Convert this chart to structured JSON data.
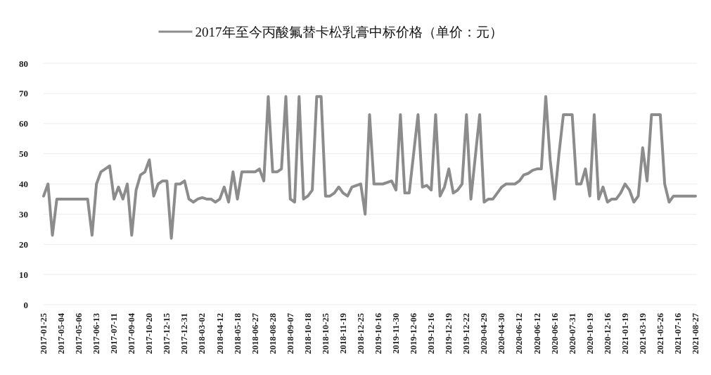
{
  "chart_data": {
    "type": "line",
    "categories": [
      "2017-01-25",
      null,
      null,
      null,
      "2017-05-04",
      null,
      null,
      null,
      "2017-05-06",
      null,
      null,
      null,
      "2017-06-13",
      null,
      null,
      null,
      "2017-07-11",
      null,
      null,
      null,
      "2017-09-04",
      null,
      null,
      null,
      "2017-10-20",
      null,
      null,
      null,
      "2017-12-15",
      null,
      null,
      null,
      "2017-12-31",
      null,
      null,
      null,
      "2018-03-02",
      null,
      null,
      null,
      "2018-04-12",
      null,
      null,
      null,
      "2018-05-18",
      null,
      null,
      null,
      "2018-06-27",
      null,
      null,
      null,
      "2018-08-28",
      null,
      null,
      null,
      "2018-09-07",
      null,
      null,
      null,
      "2018-10-18",
      null,
      null,
      null,
      "2018-10-25",
      null,
      null,
      null,
      "2018-11-19",
      null,
      null,
      null,
      "2018-12-25",
      null,
      null,
      null,
      "2019-10-16",
      null,
      null,
      null,
      "2019-11-30",
      null,
      null,
      null,
      "2019-12-06",
      null,
      null,
      null,
      "2019-12-16",
      null,
      null,
      null,
      "2019-12-19",
      null,
      null,
      null,
      "2019-12-22",
      null,
      null,
      null,
      "2020-04-29",
      null,
      null,
      null,
      "2020-04-30",
      null,
      null,
      null,
      "2020-06-12",
      null,
      null,
      null,
      "2020-06-12",
      null,
      null,
      null,
      "2020-06-16",
      null,
      null,
      null,
      "2020-07-31",
      null,
      null,
      null,
      "2020-10-19",
      null,
      null,
      null,
      "2020-12-16",
      null,
      null,
      null,
      "2021-01-19",
      null,
      null,
      null,
      "2021-03-19",
      null,
      null,
      null,
      "2021-05-26",
      null,
      null,
      null,
      "2021-07-16",
      null,
      null,
      null,
      "2021-08-27"
    ],
    "series": [
      {
        "name": "2017年至今丙酸氟替卡松乳膏中标价格（单价：元）",
        "color": "#8c8c8c",
        "values": [
          36,
          40,
          23,
          35,
          35,
          35,
          35,
          35,
          35,
          35,
          35,
          23,
          40,
          44,
          45,
          46,
          35,
          39,
          35,
          40,
          23,
          38,
          43,
          44,
          48,
          36,
          40,
          41,
          41,
          22,
          40,
          40,
          41,
          35,
          34,
          35,
          35.5,
          35,
          35,
          34,
          35,
          39,
          34,
          44,
          35,
          44,
          44,
          44,
          44,
          45,
          41,
          69,
          44,
          44,
          45,
          69,
          35,
          34,
          69,
          35,
          36,
          38,
          69,
          69,
          36,
          36,
          37,
          39,
          37,
          36,
          39,
          39.5,
          40,
          30,
          63,
          40,
          40,
          40,
          40.5,
          41,
          38,
          63,
          37,
          37,
          50,
          63,
          39,
          39.5,
          38,
          63,
          36,
          39,
          45,
          37,
          38,
          40,
          63,
          35,
          49,
          63,
          34,
          35,
          35,
          37,
          39,
          40,
          40,
          40,
          41,
          43,
          43.5,
          44.5,
          45,
          45,
          69,
          48,
          35,
          50,
          63,
          63,
          63,
          40,
          40,
          45,
          36,
          63,
          35,
          39,
          34,
          35,
          35,
          37,
          40,
          38,
          34,
          36,
          52,
          41,
          63,
          63,
          63,
          40,
          34,
          36,
          36,
          36,
          36,
          36,
          36
        ]
      }
    ],
    "ylim": [
      0,
      80
    ],
    "yticks": [
      0,
      10,
      20,
      30,
      40,
      50,
      60,
      70,
      80
    ],
    "grid": "y",
    "legend": "top",
    "marker": "none",
    "line_style": "solid"
  }
}
